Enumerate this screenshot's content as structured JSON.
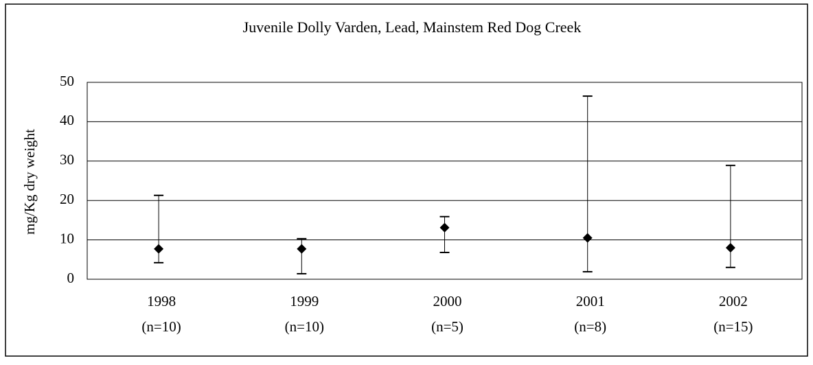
{
  "chart_data": {
    "type": "scatter",
    "title": "Juvenile Dolly Varden, Lead, Mainstem Red Dog Creek",
    "ylabel": "mg/Kg dry weight",
    "categories": [
      "1998",
      "1999",
      "2000",
      "2001",
      "2002"
    ],
    "sample_sizes": [
      "(n=10)",
      "(n=10)",
      "(n=5)",
      "(n=8)",
      "(n=15)"
    ],
    "series": [
      {
        "color": "#000000",
        "values": [
          7.7,
          7.7,
          13.1,
          10.5,
          8.0
        ],
        "min": [
          4.2,
          1.4,
          6.8,
          1.9,
          3.0
        ],
        "max": [
          21.3,
          10.3,
          15.9,
          46.5,
          28.9
        ]
      }
    ],
    "ylim": [
      0,
      50
    ],
    "yticks": [
      0,
      10,
      20,
      30,
      40,
      50
    ],
    "grid": true
  }
}
